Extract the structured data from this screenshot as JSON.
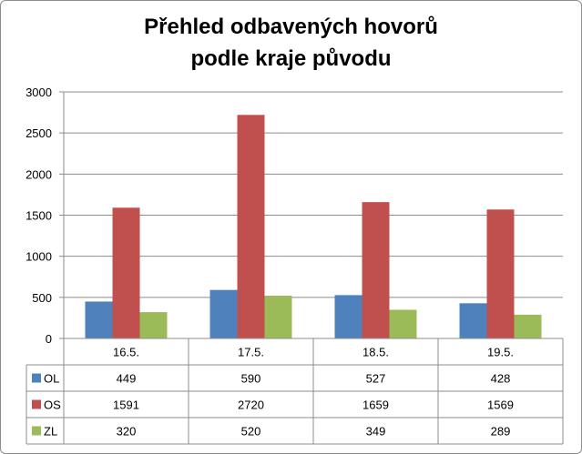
{
  "chart_data": {
    "type": "bar",
    "title": [
      "Přehled odbavených hovorů",
      "podle kraje původu"
    ],
    "categories": [
      "16.5.",
      "17.5.",
      "18.5.",
      "19.5."
    ],
    "series": [
      {
        "name": "OL",
        "values": [
          449,
          590,
          527,
          428
        ],
        "color": "#4f81bd"
      },
      {
        "name": "OS",
        "values": [
          1591,
          2720,
          1659,
          1569
        ],
        "color": "#c0504d"
      },
      {
        "name": "ZL",
        "values": [
          320,
          520,
          349,
          289
        ],
        "color": "#9bbb59"
      }
    ],
    "ylim": [
      0,
      3000
    ],
    "yticks": [
      0,
      500,
      1000,
      1500,
      2000,
      2500,
      3000
    ],
    "grid": true,
    "legend": "data-table-left",
    "data_table": true
  }
}
